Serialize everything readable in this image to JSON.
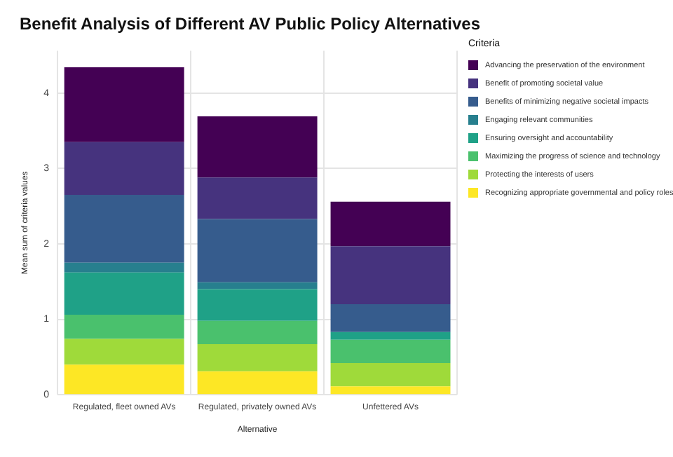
{
  "chart_data": {
    "type": "bar",
    "stacked": true,
    "title": "Benefit Analysis of Different AV Public Policy Alternatives",
    "xlabel": "Alternative",
    "ylabel": "Mean sum of criteria values",
    "legend_title": "Criteria",
    "legend": "right",
    "grid": true,
    "categories": [
      "Regulated, fleet owned AVs",
      "Regulated, privately owned AVs",
      "Unfettered AVs"
    ],
    "ylim": [
      0,
      4.56
    ],
    "yticks": [
      0,
      1,
      2,
      3,
      4
    ],
    "series": [
      {
        "name": "Recognizing appropriate governmental and policy roles",
        "color": "#fde725",
        "values": [
          0.4,
          0.31,
          0.11
        ]
      },
      {
        "name": "Protecting the interests of users",
        "color": "#9fda3a",
        "values": [
          0.34,
          0.36,
          0.31
        ]
      },
      {
        "name": "Maximizing the progress of science and technology",
        "color": "#4ac16d",
        "values": [
          0.32,
          0.31,
          0.31
        ]
      },
      {
        "name": "Ensuring oversight and accountability",
        "color": "#1fa187",
        "values": [
          0.56,
          0.42,
          0.1
        ]
      },
      {
        "name": "Engaging relevant communities",
        "color": "#277f8e",
        "values": [
          0.13,
          0.09,
          0
        ]
      },
      {
        "name": "Benefits of minimizing negative societal impacts",
        "color": "#365c8d",
        "values": [
          0.9,
          0.84,
          0.37
        ]
      },
      {
        "name": "Benefit of promoting societal value",
        "color": "#46337e",
        "values": [
          0.7,
          0.55,
          0.77
        ]
      },
      {
        "name": "Advancing the preservation of the environment",
        "color": "#440154",
        "values": [
          0.99,
          0.81,
          0.59
        ]
      }
    ]
  }
}
